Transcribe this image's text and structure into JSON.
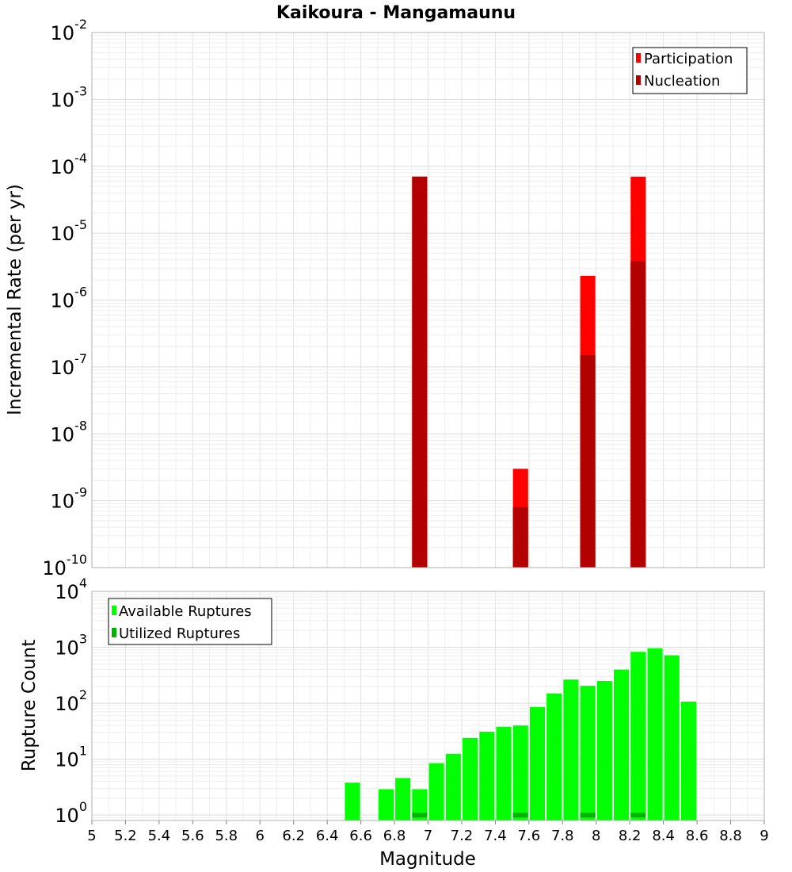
{
  "title": "Kaikoura - Mangamaunu",
  "xlabel": "Magnitude",
  "x_ticks": [
    "5",
    "5.2",
    "5.4",
    "5.6",
    "5.8",
    "6",
    "6.2",
    "6.4",
    "6.6",
    "6.8",
    "7",
    "7.2",
    "7.4",
    "7.6",
    "7.8",
    "8",
    "8.2",
    "8.4",
    "8.6",
    "8.8",
    "9"
  ],
  "chart_data": [
    {
      "type": "bar",
      "ylabel": "Incremental Rate (per yr)",
      "yscale": "log",
      "ylim": [
        1e-10,
        0.01
      ],
      "xlim": [
        5,
        9
      ],
      "bar_width": 0.09,
      "y_ticks": [
        {
          "base": "10",
          "exp": "-10"
        },
        {
          "base": "10",
          "exp": "-9"
        },
        {
          "base": "10",
          "exp": "-8"
        },
        {
          "base": "10",
          "exp": "-7"
        },
        {
          "base": "10",
          "exp": "-6"
        },
        {
          "base": "10",
          "exp": "-5"
        },
        {
          "base": "10",
          "exp": "-4"
        },
        {
          "base": "10",
          "exp": "-3"
        },
        {
          "base": "10",
          "exp": "-2"
        }
      ],
      "legend_position": "top-right",
      "grid": true,
      "series": [
        {
          "name": "Participation",
          "color": "#ff0000",
          "x": [
            6.95,
            7.55,
            7.95,
            8.25
          ],
          "values": [
            7e-05,
            3e-09,
            2.3e-06,
            7e-05
          ]
        },
        {
          "name": "Nucleation",
          "color": "#b30000",
          "x": [
            6.95,
            7.55,
            7.95,
            8.25
          ],
          "values": [
            7e-05,
            8e-10,
            1.5e-07,
            3.8e-06
          ]
        }
      ]
    },
    {
      "type": "bar",
      "ylabel": "Rupture Count",
      "yscale": "log",
      "ylim": [
        0.8,
        10000
      ],
      "xlim": [
        5,
        9
      ],
      "bar_width": 0.09,
      "y_ticks": [
        {
          "base": "10",
          "exp": "0"
        },
        {
          "base": "10",
          "exp": "1"
        },
        {
          "base": "10",
          "exp": "2"
        },
        {
          "base": "10",
          "exp": "3"
        },
        {
          "base": "10",
          "exp": "4"
        }
      ],
      "legend_position": "top-left",
      "grid": true,
      "series": [
        {
          "name": "Available Ruptures",
          "color": "#00ff00",
          "x": [
            6.55,
            6.75,
            6.85,
            6.95,
            7.05,
            7.15,
            7.25,
            7.35,
            7.45,
            7.55,
            7.65,
            7.75,
            7.85,
            7.95,
            8.05,
            8.15,
            8.25,
            8.35,
            8.45,
            8.55
          ],
          "values": [
            3.8,
            2.9,
            4.6,
            2.9,
            8.5,
            12.5,
            24,
            31,
            38,
            40,
            85,
            150,
            265,
            205,
            250,
            400,
            830,
            960,
            720,
            107
          ]
        },
        {
          "name": "Utilized Ruptures",
          "color": "#00b300",
          "x": [
            6.95,
            7.55,
            7.95,
            8.25
          ],
          "values": [
            1,
            1,
            1,
            1
          ]
        }
      ]
    }
  ]
}
